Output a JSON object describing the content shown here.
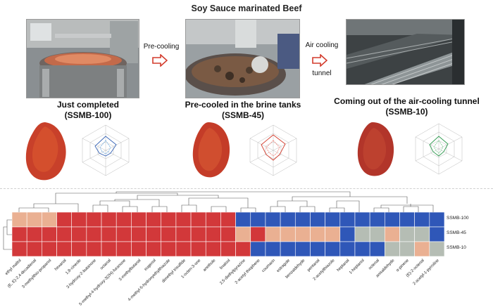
{
  "title": "Soy Sauce marinated Beef",
  "arrows": [
    {
      "label": "Pre-cooling"
    },
    {
      "label_line1": "Air cooling",
      "label_line2": "tunnel"
    }
  ],
  "stages": [
    {
      "line1": "Just completed",
      "line2": "(SSMB-100)"
    },
    {
      "line1": "Pre-cooled in the brine tanks",
      "line2": "(SSMB-45)"
    },
    {
      "line1": "Coming out of the air-cooling tunnel",
      "line2": "(SSMB-10)"
    }
  ],
  "colors": {
    "arrow": "#d33b2c",
    "heat_red": "#d2383a",
    "heat_blue": "#2f57b8",
    "heat_peach": "#eab092",
    "heat_grey": "#b5bdb4"
  },
  "heatmap": {
    "rows": [
      "SSMB-100",
      "SSMB-45",
      "SSMB-10"
    ],
    "columns": [
      "ethyl maltol",
      "(E, E)-2,4-decadienal",
      "3-methylthio-propanol",
      "hexanal",
      "1,8-cineole",
      "3-hydroxy-2-butanone",
      "octanal",
      "5-methyl-4-hydroxy-3(2H)-furanone",
      "3-methylbutanal",
      "eugenol",
      "4-methyl-5-hydroxyethylthiazole",
      "dimethyl trisulfide",
      "1-octen-3-one",
      "anethole",
      "linalool",
      "2,5-diethylpyrazine",
      "2-acetyl thiophene",
      "coumarin",
      "estragole",
      "benzaldehyde",
      "pentanal",
      "2-acetylthiazole",
      "heptanal",
      "1-heptanol",
      "octenal",
      "anisaldehyde",
      "α-pinene",
      "(E)-2-octenal",
      "2-acetyl-1-pyrroline"
    ],
    "cells": [
      [
        "P",
        "P",
        "P",
        "R",
        "R",
        "R",
        "R",
        "R",
        "R",
        "R",
        "R",
        "R",
        "R",
        "R",
        "R",
        "B",
        "B",
        "B",
        "B",
        "B",
        "B",
        "B",
        "B",
        "B",
        "B",
        "B",
        "B",
        "B",
        "B"
      ],
      [
        "R",
        "R",
        "R",
        "R",
        "R",
        "R",
        "R",
        "R",
        "R",
        "R",
        "R",
        "R",
        "R",
        "R",
        "R",
        "P",
        "R",
        "P",
        "P",
        "P",
        "P",
        "P",
        "B",
        "G",
        "G",
        "P",
        "G",
        "G",
        "B"
      ],
      [
        "R",
        "R",
        "R",
        "R",
        "R",
        "R",
        "R",
        "R",
        "R",
        "R",
        "R",
        "R",
        "R",
        "R",
        "R",
        "R",
        "B",
        "B",
        "B",
        "B",
        "B",
        "B",
        "B",
        "B",
        "B",
        "G",
        "G",
        "P",
        "G"
      ]
    ]
  }
}
